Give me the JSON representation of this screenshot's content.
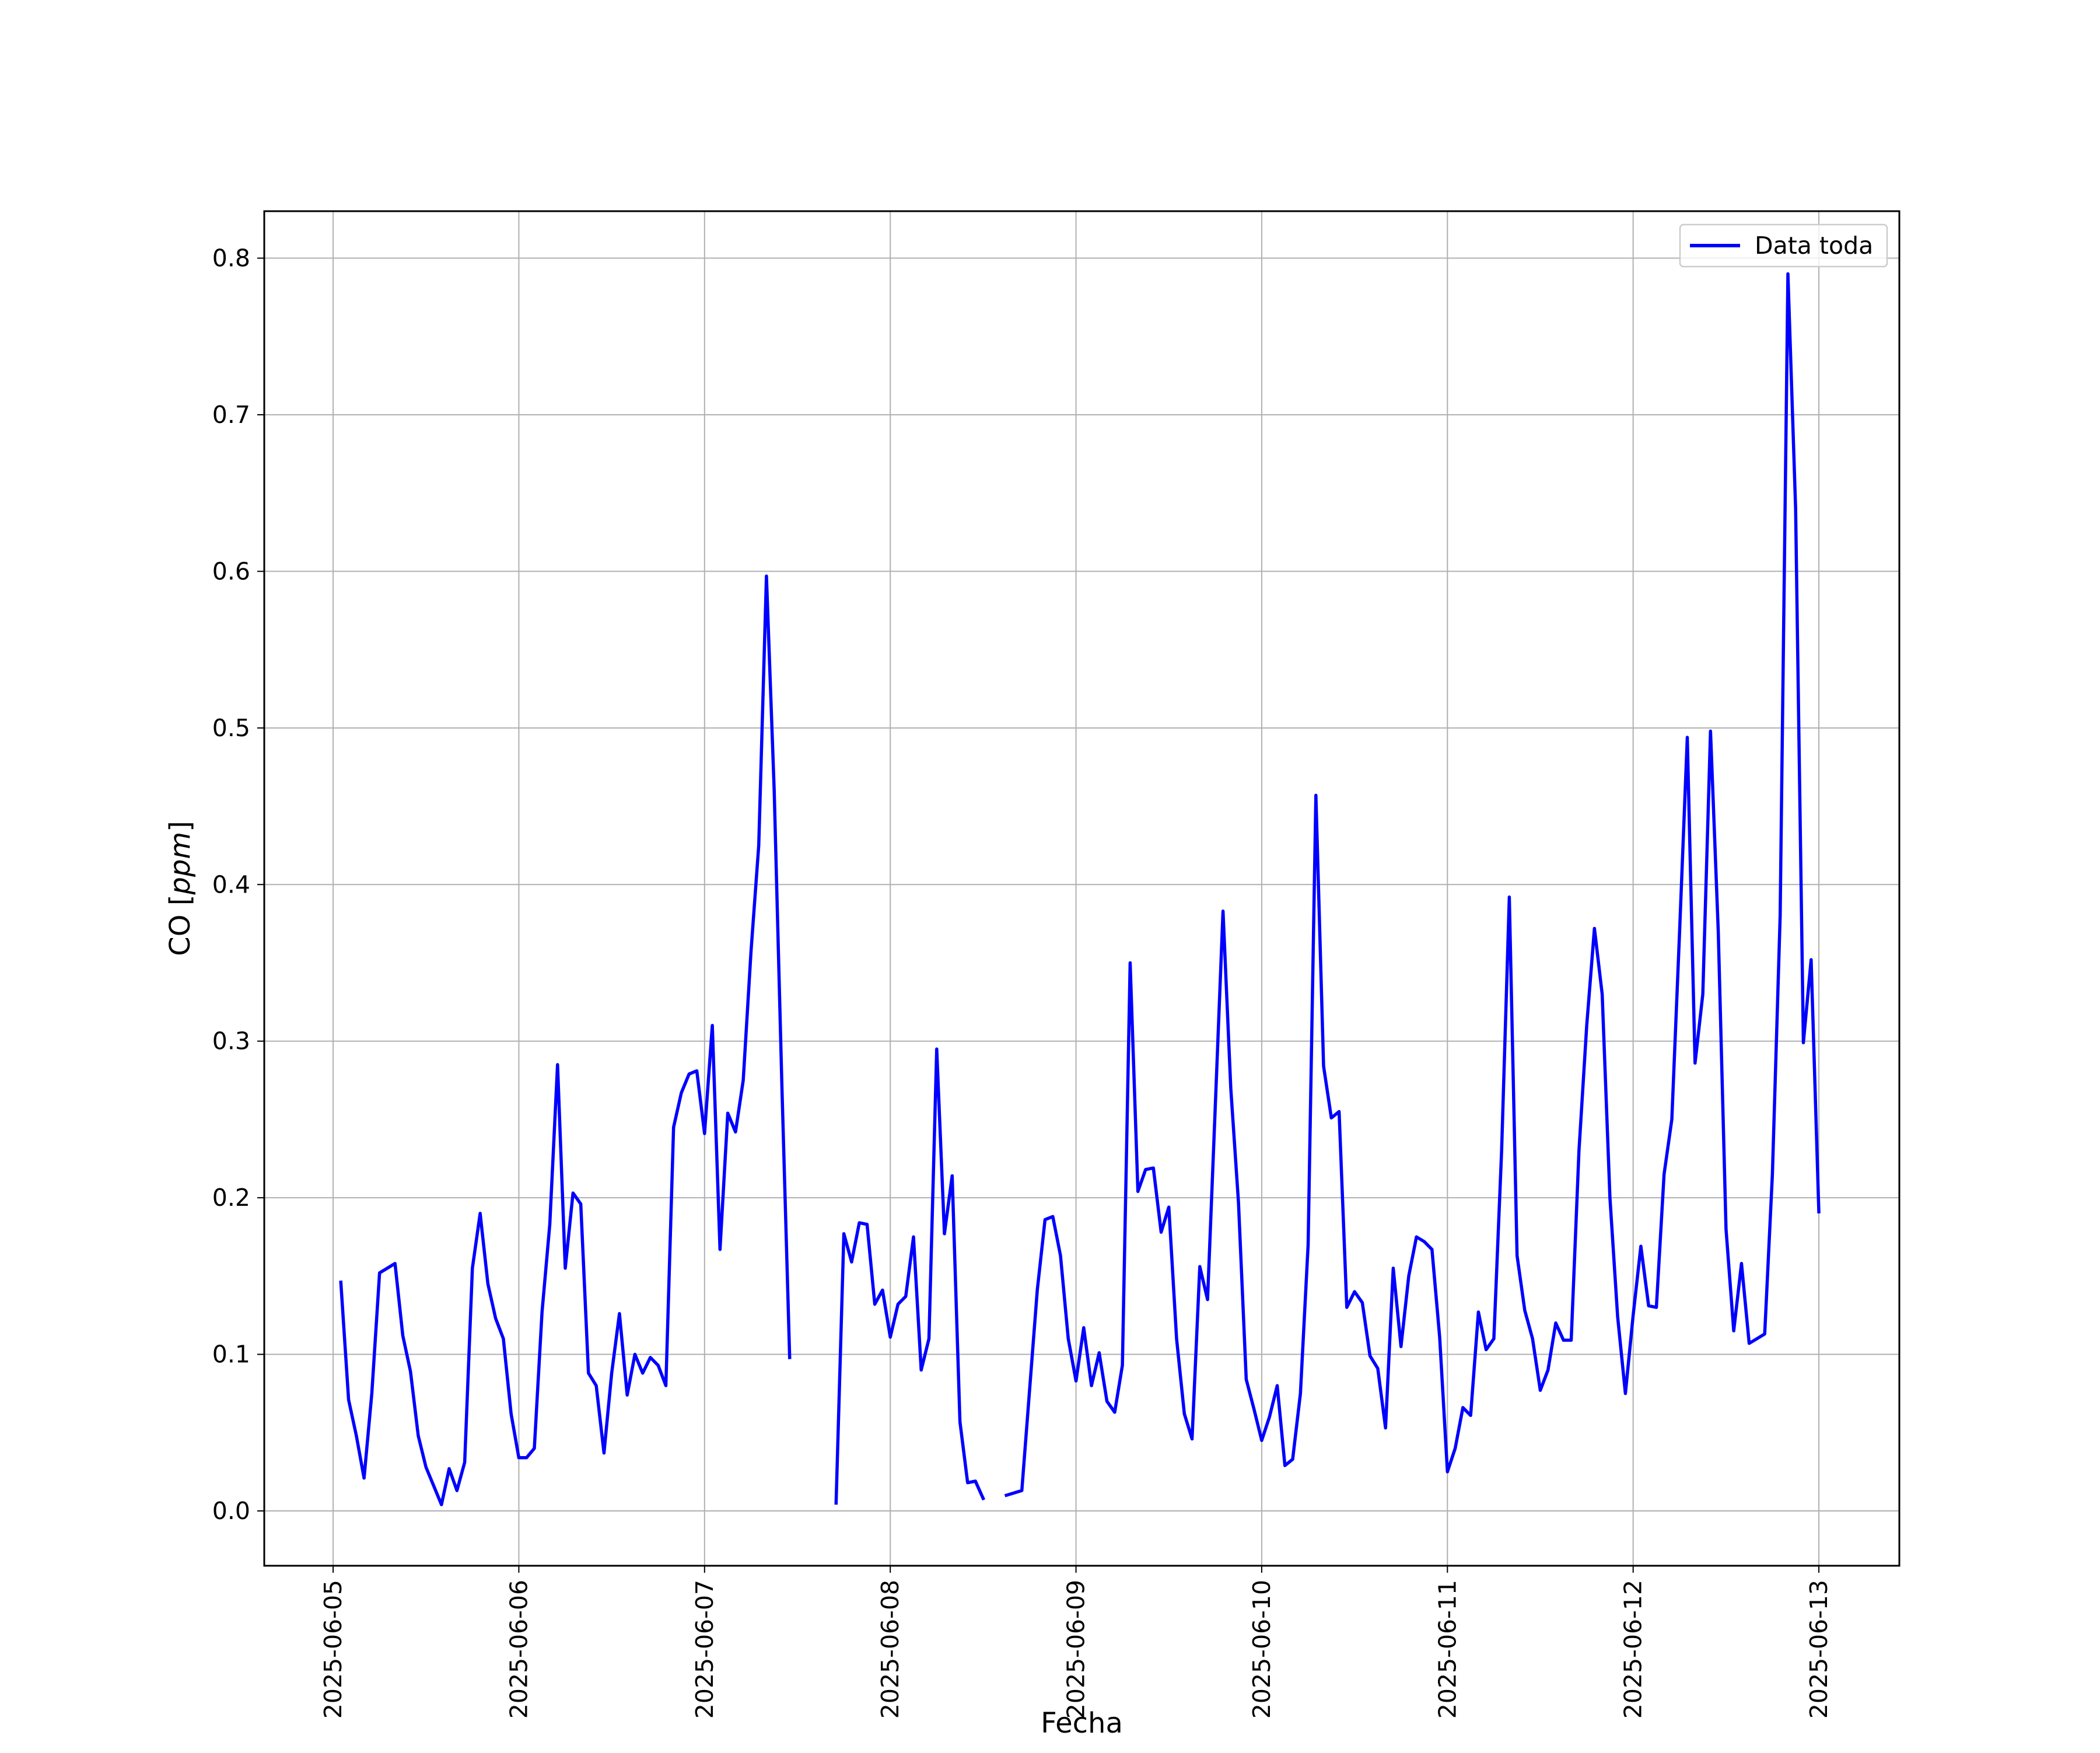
{
  "chart_data": {
    "type": "line",
    "title": "",
    "xlabel": "Fecha",
    "ylabel": "CO [ppm]",
    "ylabel_parts": {
      "prefix": "CO [",
      "unit": "ppm",
      "suffix": "]"
    },
    "xlim": [
      "2025-06-04T15:06",
      "2025-06-13T10:24"
    ],
    "ylim": [
      -0.035,
      0.83
    ],
    "x_ticks": [
      "2025-06-05",
      "2025-06-06",
      "2025-06-07",
      "2025-06-08",
      "2025-06-09",
      "2025-06-10",
      "2025-06-11",
      "2025-06-12",
      "2025-06-13"
    ],
    "y_ticks": [
      0.0,
      0.1,
      0.2,
      0.3,
      0.4,
      0.5,
      0.6,
      0.7,
      0.8
    ],
    "y_tick_labels": [
      "0.0",
      "0.1",
      "0.2",
      "0.3",
      "0.4",
      "0.5",
      "0.6",
      "0.7",
      "0.8"
    ],
    "grid": true,
    "legend_position": "top-right",
    "series": [
      {
        "name": "Data toda",
        "color": "#0000ff",
        "points": [
          [
            "2025-06-05T01:00",
            0.146
          ],
          [
            "2025-06-05T02:00",
            0.071
          ],
          [
            "2025-06-05T03:00",
            0.048
          ],
          [
            "2025-06-05T04:00",
            0.021
          ],
          [
            "2025-06-05T05:00",
            0.075
          ],
          [
            "2025-06-05T06:00",
            0.152
          ],
          [
            "2025-06-05T08:00",
            0.158
          ],
          [
            "2025-06-05T09:00",
            0.112
          ],
          [
            "2025-06-05T10:00",
            0.089
          ],
          [
            "2025-06-05T11:00",
            0.048
          ],
          [
            "2025-06-05T12:00",
            0.028
          ],
          [
            "2025-06-05T13:00",
            0.016
          ],
          [
            "2025-06-05T14:00",
            0.004
          ],
          [
            "2025-06-05T15:00",
            0.027
          ],
          [
            "2025-06-05T16:00",
            0.013
          ],
          [
            "2025-06-05T17:00",
            0.031
          ],
          [
            "2025-06-05T18:00",
            0.155
          ],
          [
            "2025-06-05T19:00",
            0.19
          ],
          [
            "2025-06-05T20:00",
            0.145
          ],
          [
            "2025-06-05T21:00",
            0.123
          ],
          [
            "2025-06-05T22:00",
            0.11
          ],
          [
            "2025-06-05T23:00",
            0.062
          ],
          [
            "2025-06-06T00:00",
            0.034
          ],
          [
            "2025-06-06T01:00",
            0.034
          ],
          [
            "2025-06-06T02:00",
            0.04
          ],
          [
            "2025-06-06T03:00",
            0.127
          ],
          [
            "2025-06-06T04:00",
            0.183
          ],
          [
            "2025-06-06T05:00",
            0.285
          ],
          [
            "2025-06-06T06:00",
            0.155
          ],
          [
            "2025-06-06T07:00",
            0.203
          ],
          [
            "2025-06-06T08:00",
            0.196
          ],
          [
            "2025-06-06T09:00",
            0.088
          ],
          [
            "2025-06-06T10:00",
            0.08
          ],
          [
            "2025-06-06T11:00",
            0.037
          ],
          [
            "2025-06-06T12:00",
            0.088
          ],
          [
            "2025-06-06T13:00",
            0.126
          ],
          [
            "2025-06-06T14:00",
            0.074
          ],
          [
            "2025-06-06T15:00",
            0.1
          ],
          [
            "2025-06-06T16:00",
            0.088
          ],
          [
            "2025-06-06T17:00",
            0.098
          ],
          [
            "2025-06-06T18:00",
            0.093
          ],
          [
            "2025-06-06T19:00",
            0.08
          ],
          [
            "2025-06-06T20:00",
            0.245
          ],
          [
            "2025-06-06T21:00",
            0.267
          ],
          [
            "2025-06-06T22:00",
            0.279
          ],
          [
            "2025-06-06T23:00",
            0.281
          ],
          [
            "2025-06-07T00:00",
            0.241
          ],
          [
            "2025-06-07T01:00",
            0.31
          ],
          [
            "2025-06-07T02:00",
            0.167
          ],
          [
            "2025-06-07T03:00",
            0.254
          ],
          [
            "2025-06-07T04:00",
            0.242
          ],
          [
            "2025-06-07T05:00",
            0.275
          ],
          [
            "2025-06-07T06:00",
            0.357
          ],
          [
            "2025-06-07T07:00",
            0.425
          ],
          [
            "2025-06-07T08:00",
            0.597
          ],
          [
            "2025-06-07T09:00",
            0.46
          ],
          [
            "2025-06-07T10:00",
            0.27
          ],
          [
            "2025-06-07T11:00",
            0.098
          ],
          null,
          [
            "2025-06-07T17:00",
            0.005
          ],
          [
            "2025-06-07T18:00",
            0.177
          ],
          [
            "2025-06-07T19:00",
            0.159
          ],
          [
            "2025-06-07T20:00",
            0.184
          ],
          [
            "2025-06-07T21:00",
            0.183
          ],
          [
            "2025-06-07T22:00",
            0.132
          ],
          [
            "2025-06-07T23:00",
            0.141
          ],
          [
            "2025-06-08T00:00",
            0.111
          ],
          [
            "2025-06-08T01:00",
            0.132
          ],
          [
            "2025-06-08T02:00",
            0.137
          ],
          [
            "2025-06-08T03:00",
            0.175
          ],
          [
            "2025-06-08T04:00",
            0.09
          ],
          [
            "2025-06-08T05:00",
            0.11
          ],
          [
            "2025-06-08T06:00",
            0.295
          ],
          [
            "2025-06-08T07:00",
            0.177
          ],
          [
            "2025-06-08T08:00",
            0.214
          ],
          [
            "2025-06-08T09:00",
            0.057
          ],
          [
            "2025-06-08T10:00",
            0.018
          ],
          [
            "2025-06-08T11:00",
            0.019
          ],
          [
            "2025-06-08T12:00",
            0.008
          ],
          null,
          [
            "2025-06-08T15:00",
            0.01
          ],
          [
            "2025-06-08T17:00",
            0.013
          ],
          [
            "2025-06-08T19:00",
            0.141
          ],
          [
            "2025-06-08T20:00",
            0.186
          ],
          [
            "2025-06-08T21:00",
            0.188
          ],
          [
            "2025-06-08T22:00",
            0.163
          ],
          [
            "2025-06-08T23:00",
            0.11
          ],
          [
            "2025-06-09T00:00",
            0.083
          ],
          [
            "2025-06-09T01:00",
            0.117
          ],
          [
            "2025-06-09T02:00",
            0.08
          ],
          [
            "2025-06-09T03:00",
            0.101
          ],
          [
            "2025-06-09T04:00",
            0.07
          ],
          [
            "2025-06-09T05:00",
            0.063
          ],
          [
            "2025-06-09T06:00",
            0.093
          ],
          [
            "2025-06-09T07:00",
            0.35
          ],
          [
            "2025-06-09T08:00",
            0.204
          ],
          [
            "2025-06-09T09:00",
            0.218
          ],
          [
            "2025-06-09T10:00",
            0.219
          ],
          [
            "2025-06-09T11:00",
            0.178
          ],
          [
            "2025-06-09T12:00",
            0.194
          ],
          [
            "2025-06-09T13:00",
            0.11
          ],
          [
            "2025-06-09T14:00",
            0.062
          ],
          [
            "2025-06-09T15:00",
            0.046
          ],
          [
            "2025-06-09T16:00",
            0.156
          ],
          [
            "2025-06-09T17:00",
            0.135
          ],
          [
            "2025-06-09T18:00",
            0.258
          ],
          [
            "2025-06-09T19:00",
            0.383
          ],
          [
            "2025-06-09T20:00",
            0.27
          ],
          [
            "2025-06-09T21:00",
            0.197
          ],
          [
            "2025-06-09T22:00",
            0.084
          ],
          [
            "2025-06-09T23:00",
            0.065
          ],
          [
            "2025-06-10T00:00",
            0.045
          ],
          [
            "2025-06-10T01:00",
            0.06
          ],
          [
            "2025-06-10T02:00",
            0.08
          ],
          [
            "2025-06-10T03:00",
            0.029
          ],
          [
            "2025-06-10T04:00",
            0.033
          ],
          [
            "2025-06-10T05:00",
            0.075
          ],
          [
            "2025-06-10T06:00",
            0.17
          ],
          [
            "2025-06-10T07:00",
            0.457
          ],
          [
            "2025-06-10T08:00",
            0.284
          ],
          [
            "2025-06-10T09:00",
            0.251
          ],
          [
            "2025-06-10T10:00",
            0.255
          ],
          [
            "2025-06-10T11:00",
            0.13
          ],
          [
            "2025-06-10T12:00",
            0.14
          ],
          [
            "2025-06-10T13:00",
            0.133
          ],
          [
            "2025-06-10T14:00",
            0.099
          ],
          [
            "2025-06-10T15:00",
            0.091
          ],
          [
            "2025-06-10T16:00",
            0.053
          ],
          [
            "2025-06-10T17:00",
            0.155
          ],
          [
            "2025-06-10T18:00",
            0.105
          ],
          [
            "2025-06-10T19:00",
            0.15
          ],
          [
            "2025-06-10T20:00",
            0.175
          ],
          [
            "2025-06-10T21:00",
            0.172
          ],
          [
            "2025-06-10T22:00",
            0.167
          ],
          [
            "2025-06-10T23:00",
            0.111
          ],
          [
            "2025-06-11T00:00",
            0.025
          ],
          [
            "2025-06-11T01:00",
            0.04
          ],
          [
            "2025-06-11T02:00",
            0.066
          ],
          [
            "2025-06-11T03:00",
            0.061
          ],
          [
            "2025-06-11T04:00",
            0.127
          ],
          [
            "2025-06-11T05:00",
            0.103
          ],
          [
            "2025-06-11T06:00",
            0.11
          ],
          [
            "2025-06-11T07:00",
            0.23
          ],
          [
            "2025-06-11T08:00",
            0.392
          ],
          [
            "2025-06-11T09:00",
            0.163
          ],
          [
            "2025-06-11T10:00",
            0.128
          ],
          [
            "2025-06-11T11:00",
            0.11
          ],
          [
            "2025-06-11T12:00",
            0.077
          ],
          [
            "2025-06-11T13:00",
            0.09
          ],
          [
            "2025-06-11T14:00",
            0.12
          ],
          [
            "2025-06-11T15:00",
            0.109
          ],
          [
            "2025-06-11T16:00",
            0.109
          ],
          [
            "2025-06-11T17:00",
            0.23
          ],
          [
            "2025-06-11T18:00",
            0.31
          ],
          [
            "2025-06-11T19:00",
            0.372
          ],
          [
            "2025-06-11T20:00",
            0.33
          ],
          [
            "2025-06-11T21:00",
            0.2
          ],
          [
            "2025-06-11T22:00",
            0.124
          ],
          [
            "2025-06-11T23:00",
            0.075
          ],
          [
            "2025-06-12T00:00",
            0.125
          ],
          [
            "2025-06-12T01:00",
            0.169
          ],
          [
            "2025-06-12T02:00",
            0.131
          ],
          [
            "2025-06-12T03:00",
            0.13
          ],
          [
            "2025-06-12T04:00",
            0.215
          ],
          [
            "2025-06-12T05:00",
            0.25
          ],
          [
            "2025-06-12T06:00",
            0.37
          ],
          [
            "2025-06-12T07:00",
            0.494
          ],
          [
            "2025-06-12T08:00",
            0.286
          ],
          [
            "2025-06-12T09:00",
            0.33
          ],
          [
            "2025-06-12T10:00",
            0.498
          ],
          [
            "2025-06-12T11:00",
            0.37
          ],
          [
            "2025-06-12T12:00",
            0.18
          ],
          [
            "2025-06-12T13:00",
            0.115
          ],
          [
            "2025-06-12T14:00",
            0.158
          ],
          [
            "2025-06-12T15:00",
            0.107
          ],
          [
            "2025-06-12T16:00",
            0.11
          ],
          [
            "2025-06-12T17:00",
            0.113
          ],
          [
            "2025-06-12T18:00",
            0.215
          ],
          [
            "2025-06-12T19:00",
            0.38
          ],
          [
            "2025-06-12T20:00",
            0.79
          ],
          [
            "2025-06-12T21:00",
            0.64
          ],
          [
            "2025-06-12T22:00",
            0.299
          ],
          [
            "2025-06-12T23:00",
            0.352
          ],
          [
            "2025-06-13T00:00",
            0.191
          ]
        ]
      }
    ]
  }
}
